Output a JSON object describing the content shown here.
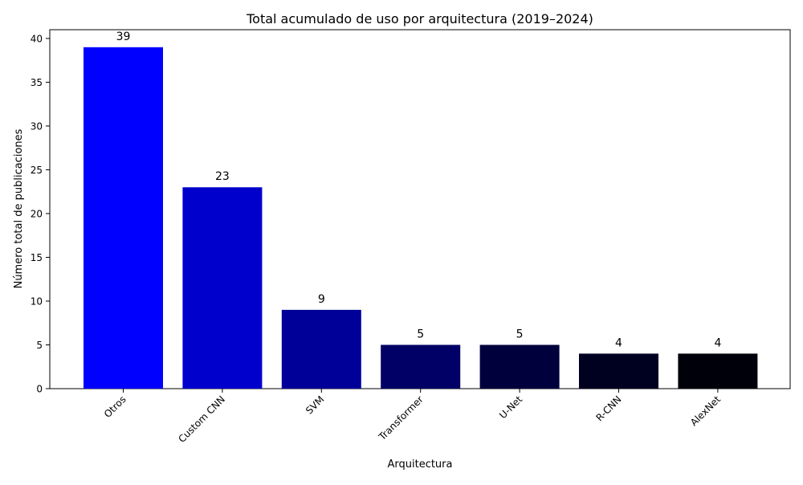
{
  "chart_data": {
    "type": "bar",
    "title": "Total acumulado de uso por arquitectura (2019–2024)",
    "xlabel": "Arquitectura",
    "ylabel": "Número total de publicaciones",
    "categories": [
      "Otros",
      "Custom CNN",
      "SVM",
      "Transformer",
      "U-Net",
      "R-CNN",
      "AlexNet"
    ],
    "values": [
      39,
      23,
      9,
      5,
      5,
      4,
      4
    ],
    "colors": [
      "#0000ff",
      "#0000cc",
      "#000099",
      "#000066",
      "#00003d",
      "#000021",
      "#00000a"
    ],
    "ylim": [
      0,
      41
    ],
    "yticks": [
      0,
      5,
      10,
      15,
      20,
      25,
      30,
      35,
      40
    ],
    "grid": false,
    "data_labels": true
  }
}
